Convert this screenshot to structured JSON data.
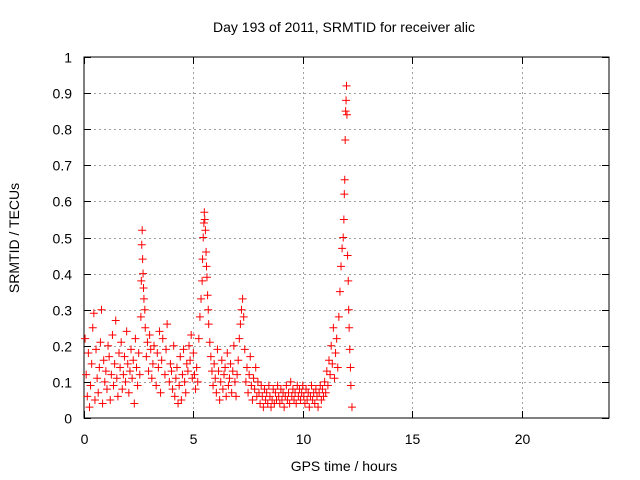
{
  "chart_data": {
    "type": "scatter",
    "title": "Day 193 of 2011, SRMTID for receiver alic",
    "xlabel": "GPS time / hours",
    "ylabel": "SRMTID / TECUs",
    "xlim": [
      0,
      24
    ],
    "ylim": [
      0,
      1
    ],
    "xticks": [
      0,
      5,
      10,
      15,
      20
    ],
    "yticks": [
      0,
      0.1,
      0.2,
      0.3,
      0.4,
      0.5,
      0.6,
      0.7,
      0.8,
      0.9,
      1
    ],
    "grid": true,
    "marker": "+",
    "series": [
      {
        "name": "SRMTID",
        "color": "#ff0000",
        "points": [
          [
            0.05,
            0.22
          ],
          [
            0.1,
            0.12
          ],
          [
            0.15,
            0.06
          ],
          [
            0.2,
            0.18
          ],
          [
            0.25,
            0.03
          ],
          [
            0.3,
            0.09
          ],
          [
            0.35,
            0.15
          ],
          [
            0.4,
            0.25
          ],
          [
            0.45,
            0.29
          ],
          [
            0.5,
            0.05
          ],
          [
            0.55,
            0.19
          ],
          [
            0.6,
            0.11
          ],
          [
            0.65,
            0.07
          ],
          [
            0.7,
            0.14
          ],
          [
            0.75,
            0.21
          ],
          [
            0.8,
            0.3
          ],
          [
            0.85,
            0.04
          ],
          [
            0.9,
            0.16
          ],
          [
            0.95,
            0.1
          ],
          [
            1.0,
            0.13
          ],
          [
            1.05,
            0.08
          ],
          [
            1.1,
            0.2
          ],
          [
            1.15,
            0.17
          ],
          [
            1.2,
            0.05
          ],
          [
            1.25,
            0.12
          ],
          [
            1.3,
            0.23
          ],
          [
            1.35,
            0.09
          ],
          [
            1.4,
            0.15
          ],
          [
            1.45,
            0.27
          ],
          [
            1.5,
            0.11
          ],
          [
            1.55,
            0.06
          ],
          [
            1.6,
            0.18
          ],
          [
            1.65,
            0.14
          ],
          [
            1.7,
            0.21
          ],
          [
            1.75,
            0.08
          ],
          [
            1.8,
            0.12
          ],
          [
            1.85,
            0.17
          ],
          [
            1.9,
            0.1
          ],
          [
            1.95,
            0.24
          ],
          [
            2.0,
            0.15
          ],
          [
            2.05,
            0.07
          ],
          [
            2.1,
            0.13
          ],
          [
            2.15,
            0.19
          ],
          [
            2.2,
            0.11
          ],
          [
            2.25,
            0.16
          ],
          [
            2.3,
            0.04
          ],
          [
            2.35,
            0.22
          ],
          [
            2.4,
            0.14
          ],
          [
            2.45,
            0.09
          ],
          [
            2.5,
            0.18
          ],
          [
            2.55,
            0.12
          ],
          [
            2.6,
            0.28
          ],
          [
            2.62,
            0.38
          ],
          [
            2.64,
            0.48
          ],
          [
            2.66,
            0.52
          ],
          [
            2.68,
            0.44
          ],
          [
            2.7,
            0.4
          ],
          [
            2.72,
            0.36
          ],
          [
            2.74,
            0.33
          ],
          [
            2.78,
            0.3
          ],
          [
            2.8,
            0.25
          ],
          [
            2.85,
            0.17
          ],
          [
            2.9,
            0.21
          ],
          [
            2.95,
            0.13
          ],
          [
            3.0,
            0.23
          ],
          [
            3.05,
            0.19
          ],
          [
            3.1,
            0.11
          ],
          [
            3.15,
            0.15
          ],
          [
            3.2,
            0.2
          ],
          [
            3.3,
            0.09
          ],
          [
            3.35,
            0.18
          ],
          [
            3.4,
            0.14
          ],
          [
            3.45,
            0.24
          ],
          [
            3.5,
            0.07
          ],
          [
            3.55,
            0.16
          ],
          [
            3.6,
            0.22
          ],
          [
            3.7,
            0.12
          ],
          [
            3.75,
            0.19
          ],
          [
            3.8,
            0.26
          ],
          [
            3.9,
            0.1
          ],
          [
            3.95,
            0.15
          ],
          [
            4.0,
            0.13
          ],
          [
            4.05,
            0.08
          ],
          [
            4.1,
            0.2
          ],
          [
            4.15,
            0.06
          ],
          [
            4.2,
            0.11
          ],
          [
            4.25,
            0.14
          ],
          [
            4.3,
            0.04
          ],
          [
            4.35,
            0.09
          ],
          [
            4.4,
            0.17
          ],
          [
            4.45,
            0.05
          ],
          [
            4.5,
            0.12
          ],
          [
            4.55,
            0.19
          ],
          [
            4.6,
            0.1
          ],
          [
            4.65,
            0.07
          ],
          [
            4.7,
            0.15
          ],
          [
            4.75,
            0.13
          ],
          [
            4.8,
            0.2
          ],
          [
            4.85,
            0.16
          ],
          [
            4.9,
            0.23
          ],
          [
            4.95,
            0.11
          ],
          [
            5.0,
            0.18
          ],
          [
            5.05,
            0.12
          ],
          [
            5.1,
            0.08
          ],
          [
            5.15,
            0.14
          ],
          [
            5.2,
            0.1
          ],
          [
            5.25,
            0.22
          ],
          [
            5.3,
            0.28
          ],
          [
            5.35,
            0.33
          ],
          [
            5.4,
            0.38
          ],
          [
            5.42,
            0.44
          ],
          [
            5.45,
            0.5
          ],
          [
            5.48,
            0.54
          ],
          [
            5.5,
            0.57
          ],
          [
            5.52,
            0.55
          ],
          [
            5.55,
            0.52
          ],
          [
            5.58,
            0.46
          ],
          [
            5.6,
            0.42
          ],
          [
            5.62,
            0.39
          ],
          [
            5.65,
            0.34
          ],
          [
            5.68,
            0.3
          ],
          [
            5.7,
            0.26
          ],
          [
            5.75,
            0.21
          ],
          [
            5.8,
            0.17
          ],
          [
            5.85,
            0.13
          ],
          [
            5.9,
            0.09
          ],
          [
            5.95,
            0.15
          ],
          [
            6.0,
            0.11
          ],
          [
            6.05,
            0.07
          ],
          [
            6.1,
            0.19
          ],
          [
            6.15,
            0.13
          ],
          [
            6.2,
            0.05
          ],
          [
            6.25,
            0.1
          ],
          [
            6.3,
            0.16
          ],
          [
            6.35,
            0.08
          ],
          [
            6.4,
            0.12
          ],
          [
            6.45,
            0.14
          ],
          [
            6.5,
            0.06
          ],
          [
            6.55,
            0.18
          ],
          [
            6.6,
            0.09
          ],
          [
            6.65,
            0.11
          ],
          [
            6.7,
            0.15
          ],
          [
            6.75,
            0.07
          ],
          [
            6.8,
            0.13
          ],
          [
            6.85,
            0.2
          ],
          [
            6.9,
            0.1
          ],
          [
            6.95,
            0.06
          ],
          [
            7.0,
            0.12
          ],
          [
            7.05,
            0.16
          ],
          [
            7.1,
            0.22
          ],
          [
            7.15,
            0.26
          ],
          [
            7.2,
            0.3
          ],
          [
            7.25,
            0.33
          ],
          [
            7.3,
            0.28
          ],
          [
            7.35,
            0.19
          ],
          [
            7.4,
            0.1
          ],
          [
            7.45,
            0.14
          ],
          [
            7.5,
            0.07
          ],
          [
            7.55,
            0.12
          ],
          [
            7.6,
            0.17
          ],
          [
            7.65,
            0.09
          ],
          [
            7.7,
            0.05
          ],
          [
            7.75,
            0.11
          ],
          [
            7.8,
            0.08
          ],
          [
            7.85,
            0.14
          ],
          [
            7.9,
            0.06
          ],
          [
            7.95,
            0.1
          ],
          [
            8.0,
            0.07
          ],
          [
            8.05,
            0.04
          ],
          [
            8.1,
            0.09
          ],
          [
            8.15,
            0.06
          ],
          [
            8.2,
            0.03
          ],
          [
            8.25,
            0.08
          ],
          [
            8.3,
            0.05
          ],
          [
            8.35,
            0.07
          ],
          [
            8.4,
            0.04
          ],
          [
            8.45,
            0.09
          ],
          [
            8.5,
            0.06
          ],
          [
            8.55,
            0.03
          ],
          [
            8.6,
            0.05
          ],
          [
            8.65,
            0.08
          ],
          [
            8.7,
            0.04
          ],
          [
            8.75,
            0.07
          ],
          [
            8.8,
            0.05
          ],
          [
            8.85,
            0.09
          ],
          [
            8.9,
            0.06
          ],
          [
            8.95,
            0.04
          ],
          [
            9.0,
            0.08
          ],
          [
            9.05,
            0.05
          ],
          [
            9.1,
            0.07
          ],
          [
            9.15,
            0.03
          ],
          [
            9.2,
            0.06
          ],
          [
            9.25,
            0.09
          ],
          [
            9.3,
            0.05
          ],
          [
            9.35,
            0.07
          ],
          [
            9.4,
            0.04
          ],
          [
            9.45,
            0.1
          ],
          [
            9.5,
            0.06
          ],
          [
            9.55,
            0.08
          ],
          [
            9.6,
            0.05
          ],
          [
            9.65,
            0.07
          ],
          [
            9.7,
            0.04
          ],
          [
            9.75,
            0.09
          ],
          [
            9.8,
            0.06
          ],
          [
            9.85,
            0.08
          ],
          [
            9.9,
            0.05
          ],
          [
            9.95,
            0.07
          ],
          [
            10.0,
            0.09
          ],
          [
            10.05,
            0.06
          ],
          [
            10.1,
            0.04
          ],
          [
            10.15,
            0.08
          ],
          [
            10.2,
            0.05
          ],
          [
            10.25,
            0.07
          ],
          [
            10.3,
            0.03
          ],
          [
            10.35,
            0.06
          ],
          [
            10.4,
            0.09
          ],
          [
            10.45,
            0.05
          ],
          [
            10.5,
            0.07
          ],
          [
            10.55,
            0.04
          ],
          [
            10.6,
            0.08
          ],
          [
            10.65,
            0.06
          ],
          [
            10.7,
            0.03
          ],
          [
            10.75,
            0.07
          ],
          [
            10.8,
            0.09
          ],
          [
            10.85,
            0.05
          ],
          [
            10.9,
            0.08
          ],
          [
            10.95,
            0.06
          ],
          [
            11.0,
            0.1
          ],
          [
            11.05,
            0.07
          ],
          [
            11.1,
            0.13
          ],
          [
            11.15,
            0.09
          ],
          [
            11.2,
            0.16
          ],
          [
            11.25,
            0.12
          ],
          [
            11.3,
            0.2
          ],
          [
            11.35,
            0.15
          ],
          [
            11.4,
            0.25
          ],
          [
            11.45,
            0.11
          ],
          [
            11.5,
            0.18
          ],
          [
            11.55,
            0.22
          ],
          [
            11.6,
            0.14
          ],
          [
            11.65,
            0.28
          ],
          [
            11.7,
            0.35
          ],
          [
            11.75,
            0.42
          ],
          [
            11.8,
            0.47
          ],
          [
            11.85,
            0.5
          ],
          [
            11.88,
            0.55
          ],
          [
            11.9,
            0.62
          ],
          [
            11.92,
            0.66
          ],
          [
            11.94,
            0.77
          ],
          [
            11.96,
            0.85
          ],
          [
            11.98,
            0.88
          ],
          [
            12.0,
            0.92
          ],
          [
            12.02,
            0.84
          ],
          [
            12.05,
            0.45
          ],
          [
            12.08,
            0.38
          ],
          [
            12.1,
            0.3
          ],
          [
            12.12,
            0.25
          ],
          [
            12.15,
            0.19
          ],
          [
            12.18,
            0.14
          ],
          [
            12.2,
            0.09
          ],
          [
            12.25,
            0.03
          ]
        ]
      }
    ]
  }
}
